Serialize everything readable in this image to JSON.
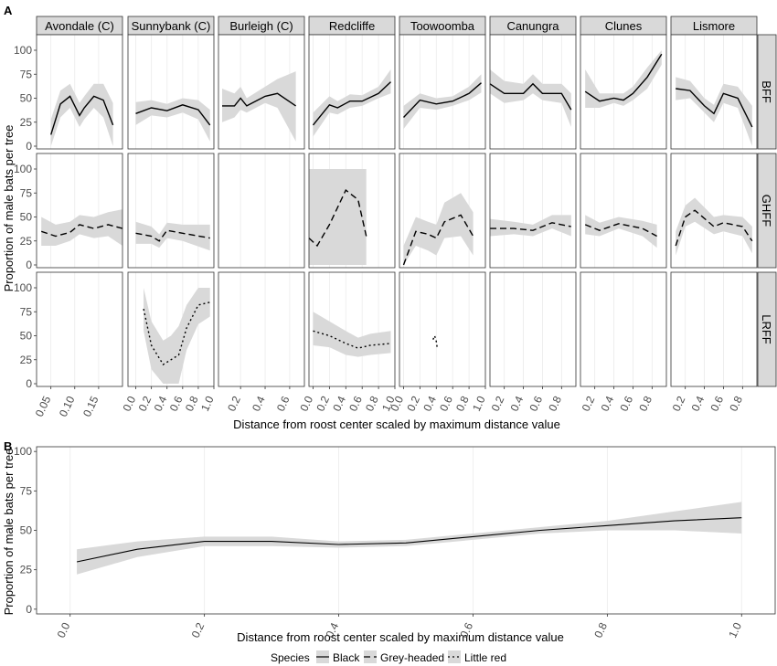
{
  "panel_a": {
    "tag": "A",
    "ylabel": "Proportion of male bats per tree",
    "xlabel": "Distance from roost center scaled by maximum distance value",
    "ytick_labels": [
      "0",
      "25",
      "50",
      "75",
      "100"
    ],
    "sites": [
      "Avondale (C)",
      "Sunnybank (C)",
      "Burleigh (C)",
      "Redcliffe",
      "Toowoomba",
      "Canungra",
      "Clunes",
      "Lismore"
    ],
    "species_rows": [
      "BFF",
      "GHFF",
      "LRFF"
    ],
    "x_ticks": [
      [
        "0.05",
        "0.10",
        "0.15"
      ],
      [
        "0.0",
        "0.2",
        "0.4",
        "0.6",
        "0.8",
        "1.0"
      ],
      [
        "0.2",
        "0.4",
        "0.6"
      ],
      [
        "0.0",
        "0.2",
        "0.4",
        "0.6",
        "0.8",
        "1.0"
      ],
      [
        "0.0",
        "0.2",
        "0.4",
        "0.6",
        "0.8",
        "1.0"
      ],
      [
        "0.2",
        "0.4",
        "0.6",
        "0.8"
      ],
      [
        "0.2",
        "0.4",
        "0.6",
        "0.8"
      ],
      [
        "0.2",
        "0.4",
        "0.6",
        "0.8"
      ]
    ]
  },
  "panel_b": {
    "tag": "B",
    "ylabel": "Proportion of male bats per tree",
    "xlabel": "Distance from roost center scaled by maximum distance value",
    "ytick_labels": [
      "0",
      "25",
      "50",
      "75",
      "100"
    ],
    "xtick_labels": [
      "0.0",
      "0.2",
      "0.4",
      "0.6",
      "0.8",
      "1.0"
    ]
  },
  "legend": {
    "title": "Species",
    "items": [
      "Black",
      "Grey-headed",
      "Little red"
    ]
  },
  "colors": {
    "ribbon": "#d9d9d9",
    "line": "#000000",
    "strip": "#d9d9d9",
    "grid": "#ebebeb",
    "frame": "#333333"
  },
  "chart_data": [
    {
      "type": "line",
      "title": "",
      "ylabel": "Proportion of male bats per tree",
      "xlabel": "Distance from roost center scaled by maximum distance value",
      "ylim": [
        0,
        100
      ],
      "grid": true,
      "facets": {
        "columns": [
          "Avondale (C)",
          "Sunnybank (C)",
          "Burleigh (C)",
          "Redcliffe",
          "Toowoomba",
          "Canungra",
          "Clunes",
          "Lismore"
        ],
        "rows": [
          "BFF",
          "GHFF",
          "LRFF"
        ],
        "xlim_per_column": [
          [
            0.02,
            0.2
          ],
          [
            -0.1,
            1.0
          ],
          [
            0.02,
            0.72
          ],
          [
            -0.05,
            1.0
          ],
          [
            -0.05,
            1.0
          ],
          [
            0.05,
            0.95
          ],
          [
            0.05,
            0.95
          ],
          [
            0.05,
            0.95
          ]
        ]
      },
      "series": [
        {
          "species": "BFF",
          "site": "Avondale (C)",
          "x": [
            0.05,
            0.07,
            0.09,
            0.11,
            0.12,
            0.14,
            0.16,
            0.18
          ],
          "y": [
            12,
            44,
            52,
            32,
            40,
            52,
            48,
            22
          ],
          "lower": [
            0,
            30,
            40,
            20,
            28,
            40,
            30,
            0
          ],
          "upper": [
            28,
            58,
            65,
            45,
            52,
            65,
            65,
            45
          ]
        },
        {
          "species": "BFF",
          "site": "Sunnybank (C)",
          "x": [
            0.0,
            0.2,
            0.4,
            0.6,
            0.8,
            0.95
          ],
          "y": [
            34,
            40,
            37,
            43,
            38,
            22
          ],
          "lower": [
            22,
            32,
            30,
            35,
            28,
            5
          ],
          "upper": [
            46,
            48,
            44,
            50,
            48,
            38
          ]
        },
        {
          "species": "BFF",
          "site": "Burleigh (C)",
          "x": [
            0.05,
            0.15,
            0.2,
            0.25,
            0.4,
            0.5,
            0.65
          ],
          "y": [
            42,
            42,
            50,
            42,
            52,
            55,
            42
          ],
          "lower": [
            25,
            30,
            38,
            35,
            45,
            40,
            5
          ],
          "upper": [
            60,
            55,
            62,
            50,
            62,
            70,
            78
          ]
        },
        {
          "species": "BFF",
          "site": "Redcliffe",
          "x": [
            0.0,
            0.2,
            0.3,
            0.45,
            0.6,
            0.8,
            0.95
          ],
          "y": [
            22,
            43,
            40,
            47,
            47,
            55,
            67
          ],
          "lower": [
            10,
            35,
            33,
            40,
            42,
            50,
            55
          ],
          "upper": [
            35,
            52,
            47,
            54,
            53,
            62,
            80
          ]
        },
        {
          "species": "BFF",
          "site": "Toowoomba",
          "x": [
            0.0,
            0.2,
            0.4,
            0.6,
            0.8,
            0.95
          ],
          "y": [
            30,
            48,
            44,
            47,
            55,
            66
          ],
          "lower": [
            18,
            40,
            38,
            42,
            48,
            56
          ],
          "upper": [
            42,
            55,
            50,
            52,
            62,
            75
          ]
        },
        {
          "species": "BFF",
          "site": "Canungra",
          "x": [
            0.05,
            0.2,
            0.4,
            0.5,
            0.6,
            0.8,
            0.9
          ],
          "y": [
            65,
            55,
            55,
            65,
            55,
            55,
            38
          ],
          "lower": [
            55,
            45,
            48,
            55,
            48,
            45,
            20
          ],
          "upper": [
            80,
            68,
            65,
            75,
            65,
            65,
            55
          ]
        },
        {
          "species": "BFF",
          "site": "Clunes",
          "x": [
            0.1,
            0.25,
            0.4,
            0.5,
            0.6,
            0.75,
            0.9
          ],
          "y": [
            57,
            47,
            50,
            48,
            55,
            72,
            96
          ],
          "lower": [
            40,
            40,
            45,
            42,
            48,
            60,
            85
          ],
          "upper": [
            80,
            55,
            55,
            55,
            62,
            82,
            100
          ]
        },
        {
          "species": "BFF",
          "site": "Lismore",
          "x": [
            0.1,
            0.25,
            0.4,
            0.5,
            0.6,
            0.75,
            0.9
          ],
          "y": [
            60,
            58,
            42,
            34,
            55,
            50,
            20
          ],
          "lower": [
            48,
            50,
            35,
            25,
            45,
            40,
            0
          ],
          "upper": [
            72,
            68,
            50,
            43,
            65,
            62,
            42
          ]
        },
        {
          "species": "GHFF",
          "site": "Avondale (C)",
          "x": [
            0.03,
            0.06,
            0.09,
            0.11,
            0.14,
            0.17,
            0.2
          ],
          "y": [
            35,
            30,
            34,
            42,
            38,
            42,
            38
          ],
          "lower": [
            20,
            20,
            25,
            32,
            28,
            30,
            20
          ],
          "upper": [
            50,
            42,
            45,
            52,
            50,
            55,
            58
          ]
        },
        {
          "species": "GHFF",
          "site": "Sunnybank (C)",
          "x": [
            0.0,
            0.2,
            0.3,
            0.4,
            0.6,
            0.95
          ],
          "y": [
            33,
            30,
            25,
            36,
            33,
            28
          ],
          "lower": [
            22,
            22,
            18,
            28,
            25,
            15
          ],
          "upper": [
            45,
            40,
            32,
            44,
            42,
            42
          ]
        },
        {
          "species": "GHFF",
          "site": "Redcliffe",
          "x": [
            -0.05,
            0.05,
            0.2,
            0.4,
            0.55,
            0.65
          ],
          "y": [
            28,
            20,
            42,
            78,
            68,
            30
          ],
          "lower": [
            0,
            0,
            0,
            0,
            0,
            0
          ],
          "upper": [
            100,
            100,
            100,
            100,
            100,
            100
          ]
        },
        {
          "species": "GHFF",
          "site": "Toowoomba",
          "x": [
            0.0,
            0.15,
            0.3,
            0.4,
            0.5,
            0.7,
            0.85
          ],
          "y": [
            0,
            35,
            32,
            28,
            45,
            52,
            30
          ],
          "lower": [
            0,
            20,
            15,
            10,
            28,
            30,
            10
          ],
          "upper": [
            20,
            50,
            45,
            42,
            65,
            75,
            55
          ]
        },
        {
          "species": "GHFF",
          "site": "Canungra",
          "x": [
            0.05,
            0.3,
            0.5,
            0.7,
            0.9
          ],
          "y": [
            38,
            38,
            36,
            44,
            40
          ],
          "lower": [
            30,
            32,
            30,
            38,
            30
          ],
          "upper": [
            48,
            45,
            42,
            52,
            52
          ]
        },
        {
          "species": "GHFF",
          "site": "Clunes",
          "x": [
            0.1,
            0.25,
            0.45,
            0.7,
            0.85
          ],
          "y": [
            42,
            36,
            43,
            38,
            30
          ],
          "lower": [
            32,
            30,
            38,
            30,
            18
          ],
          "upper": [
            52,
            44,
            50,
            46,
            42
          ]
        },
        {
          "species": "GHFF",
          "site": "Lismore",
          "x": [
            0.1,
            0.2,
            0.3,
            0.5,
            0.6,
            0.8,
            0.9
          ],
          "y": [
            20,
            50,
            57,
            40,
            44,
            40,
            25
          ],
          "lower": [
            10,
            40,
            45,
            32,
            35,
            30,
            12
          ],
          "upper": [
            35,
            62,
            70,
            50,
            52,
            50,
            40
          ]
        },
        {
          "species": "LRFF",
          "site": "Sunnybank (C)",
          "x": [
            0.1,
            0.2,
            0.35,
            0.45,
            0.55,
            0.65,
            0.8,
            0.95
          ],
          "y": [
            78,
            40,
            20,
            25,
            30,
            58,
            82,
            85
          ],
          "lower": [
            55,
            15,
            0,
            0,
            0,
            35,
            62,
            70
          ],
          "upper": [
            100,
            65,
            45,
            50,
            60,
            82,
            100,
            100
          ]
        },
        {
          "species": "LRFF",
          "site": "Redcliffe",
          "x": [
            0.0,
            0.2,
            0.4,
            0.55,
            0.7,
            0.95
          ],
          "y": [
            55,
            50,
            42,
            37,
            40,
            42
          ],
          "lower": [
            40,
            38,
            30,
            28,
            30,
            32
          ],
          "upper": [
            75,
            65,
            55,
            48,
            52,
            55
          ]
        },
        {
          "species": "LRFF",
          "site": "Toowoomba",
          "x": [
            0.36,
            0.38,
            0.4,
            0.41
          ],
          "y": [
            46,
            50,
            44,
            38
          ],
          "lower": [
            46,
            50,
            44,
            38
          ],
          "upper": [
            46,
            50,
            44,
            38
          ]
        }
      ]
    },
    {
      "type": "line",
      "title": "",
      "ylabel": "Proportion of male bats per tree",
      "xlabel": "Distance from roost center scaled by maximum distance value",
      "xlim": [
        -0.05,
        1.05
      ],
      "ylim": [
        -3,
        103
      ],
      "grid": true,
      "legend_position": "bottom",
      "series": [
        {
          "name": "",
          "x": [
            0.01,
            0.1,
            0.2,
            0.3,
            0.4,
            0.5,
            0.6,
            0.7,
            0.8,
            0.9,
            1.0
          ],
          "y": [
            30,
            38,
            43,
            43,
            41,
            42,
            46,
            50,
            53,
            56,
            58
          ],
          "lower": [
            22,
            33,
            40,
            40,
            39,
            40,
            44,
            48,
            50,
            50,
            48
          ],
          "upper": [
            38,
            43,
            46,
            46,
            43,
            44,
            48,
            52,
            56,
            62,
            68
          ]
        }
      ]
    }
  ]
}
